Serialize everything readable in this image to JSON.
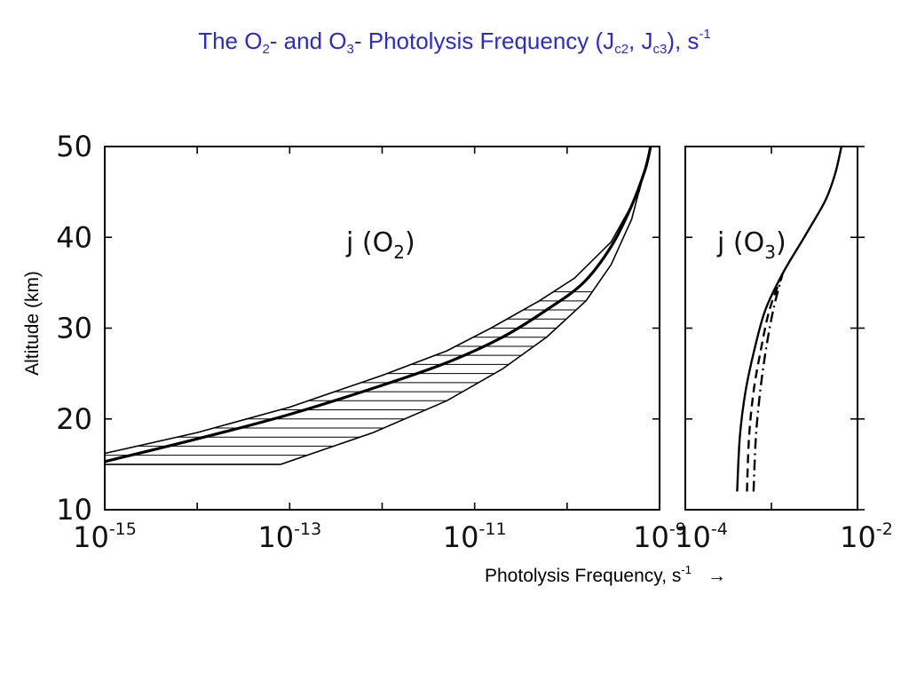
{
  "title": {
    "parts": [
      {
        "text": "The O",
        "style": "normal"
      },
      {
        "text": "2",
        "style": "sub"
      },
      {
        "text": "- and O",
        "style": "normal"
      },
      {
        "text": "3",
        "style": "sub"
      },
      {
        "text": "- Photolysis Frequency (J",
        "style": "normal"
      },
      {
        "text": "c2",
        "style": "sub"
      },
      {
        "text": ", J",
        "style": "normal"
      },
      {
        "text": "c3",
        "style": "sub"
      },
      {
        "text": "), s",
        "style": "normal"
      },
      {
        "text": "-1",
        "style": "sup"
      }
    ]
  },
  "ylabel": "Altitude (km)",
  "xlabel": {
    "text": "Photolysis Frequency, s",
    "sup": "-1",
    "arrow": "→"
  },
  "colors": {
    "title": "#2b2bd0",
    "ink": "#000000"
  },
  "chart_data": [
    {
      "type": "line",
      "panel": "left",
      "annotation": {
        "base": "j (O",
        "sub": "2",
        "close": ")"
      },
      "xscale": "log",
      "xlim": [
        1e-15,
        1e-09
      ],
      "ylim": [
        10,
        50
      ],
      "xticks": [
        {
          "base": "10",
          "exp": "-15",
          "value": 1e-15
        },
        {
          "base": "10",
          "exp": "-13",
          "value": 1e-13
        },
        {
          "base": "10",
          "exp": "-11",
          "value": 1e-11
        },
        {
          "base": "10",
          "exp": "-9",
          "value": 1e-09
        }
      ],
      "yticks": [
        "10",
        "20",
        "30",
        "40",
        "50"
      ],
      "band": {
        "lower": {
          "x": [
            1e-15,
            8e-14,
            8e-13,
            5e-12,
            2e-11,
            6e-11,
            1.6e-10,
            3e-10,
            5e-10,
            8e-10
          ],
          "y": [
            15,
            15,
            18.5,
            22,
            25.5,
            29,
            33,
            37,
            42,
            50
          ]
        },
        "upper": {
          "x": [
            1e-15,
            1e-14,
            1e-13,
            1e-12,
            5e-12,
            1.5e-11,
            5e-11,
            1.2e-10,
            3e-10,
            6e-10,
            8e-10
          ],
          "y": [
            16.2,
            18.5,
            21.3,
            24.8,
            27.5,
            30,
            33,
            35.5,
            39.5,
            45,
            50
          ]
        }
      },
      "series": [
        {
          "style": "solid",
          "x": [
            1e-15,
            1e-14,
            1e-13,
            1e-12,
            5e-12,
            2e-11,
            6e-11,
            1.5e-10,
            3e-10,
            5e-10,
            7e-10,
            8e-10
          ],
          "y": [
            15.3,
            17.8,
            20.5,
            23.7,
            26.2,
            29,
            32,
            35,
            39,
            43.5,
            47.5,
            50
          ]
        }
      ]
    },
    {
      "type": "line",
      "panel": "right",
      "annotation": {
        "base": "j (O",
        "sub": "3",
        "close": ")"
      },
      "xscale": "log",
      "xlim": [
        0.0001,
        0.01
      ],
      "ylim": [
        10,
        50
      ],
      "xticks": [
        {
          "base": "10",
          "exp": "-4",
          "value": 0.0001
        },
        {
          "base": "10",
          "exp": "-2",
          "value": 0.01
        }
      ],
      "series": [
        {
          "style": "solid",
          "x": [
            0.0004,
            0.00043,
            0.0005,
            0.00063,
            0.00085,
            0.00135,
            0.0024,
            0.0042,
            0.0055,
            0.0065
          ],
          "y": [
            12,
            18,
            23,
            27.5,
            32,
            36,
            40,
            44,
            47,
            50
          ]
        },
        {
          "style": "dashed",
          "x": [
            0.00052,
            0.00055,
            0.00062,
            0.00075,
            0.00095,
            0.00135
          ],
          "y": [
            12,
            18,
            23,
            27.5,
            32,
            36
          ]
        },
        {
          "style": "dashdot",
          "x": [
            0.00062,
            0.00066,
            0.00074,
            0.00086,
            0.00105,
            0.00135
          ],
          "y": [
            12,
            18,
            23,
            27.5,
            32,
            36
          ]
        }
      ]
    }
  ]
}
